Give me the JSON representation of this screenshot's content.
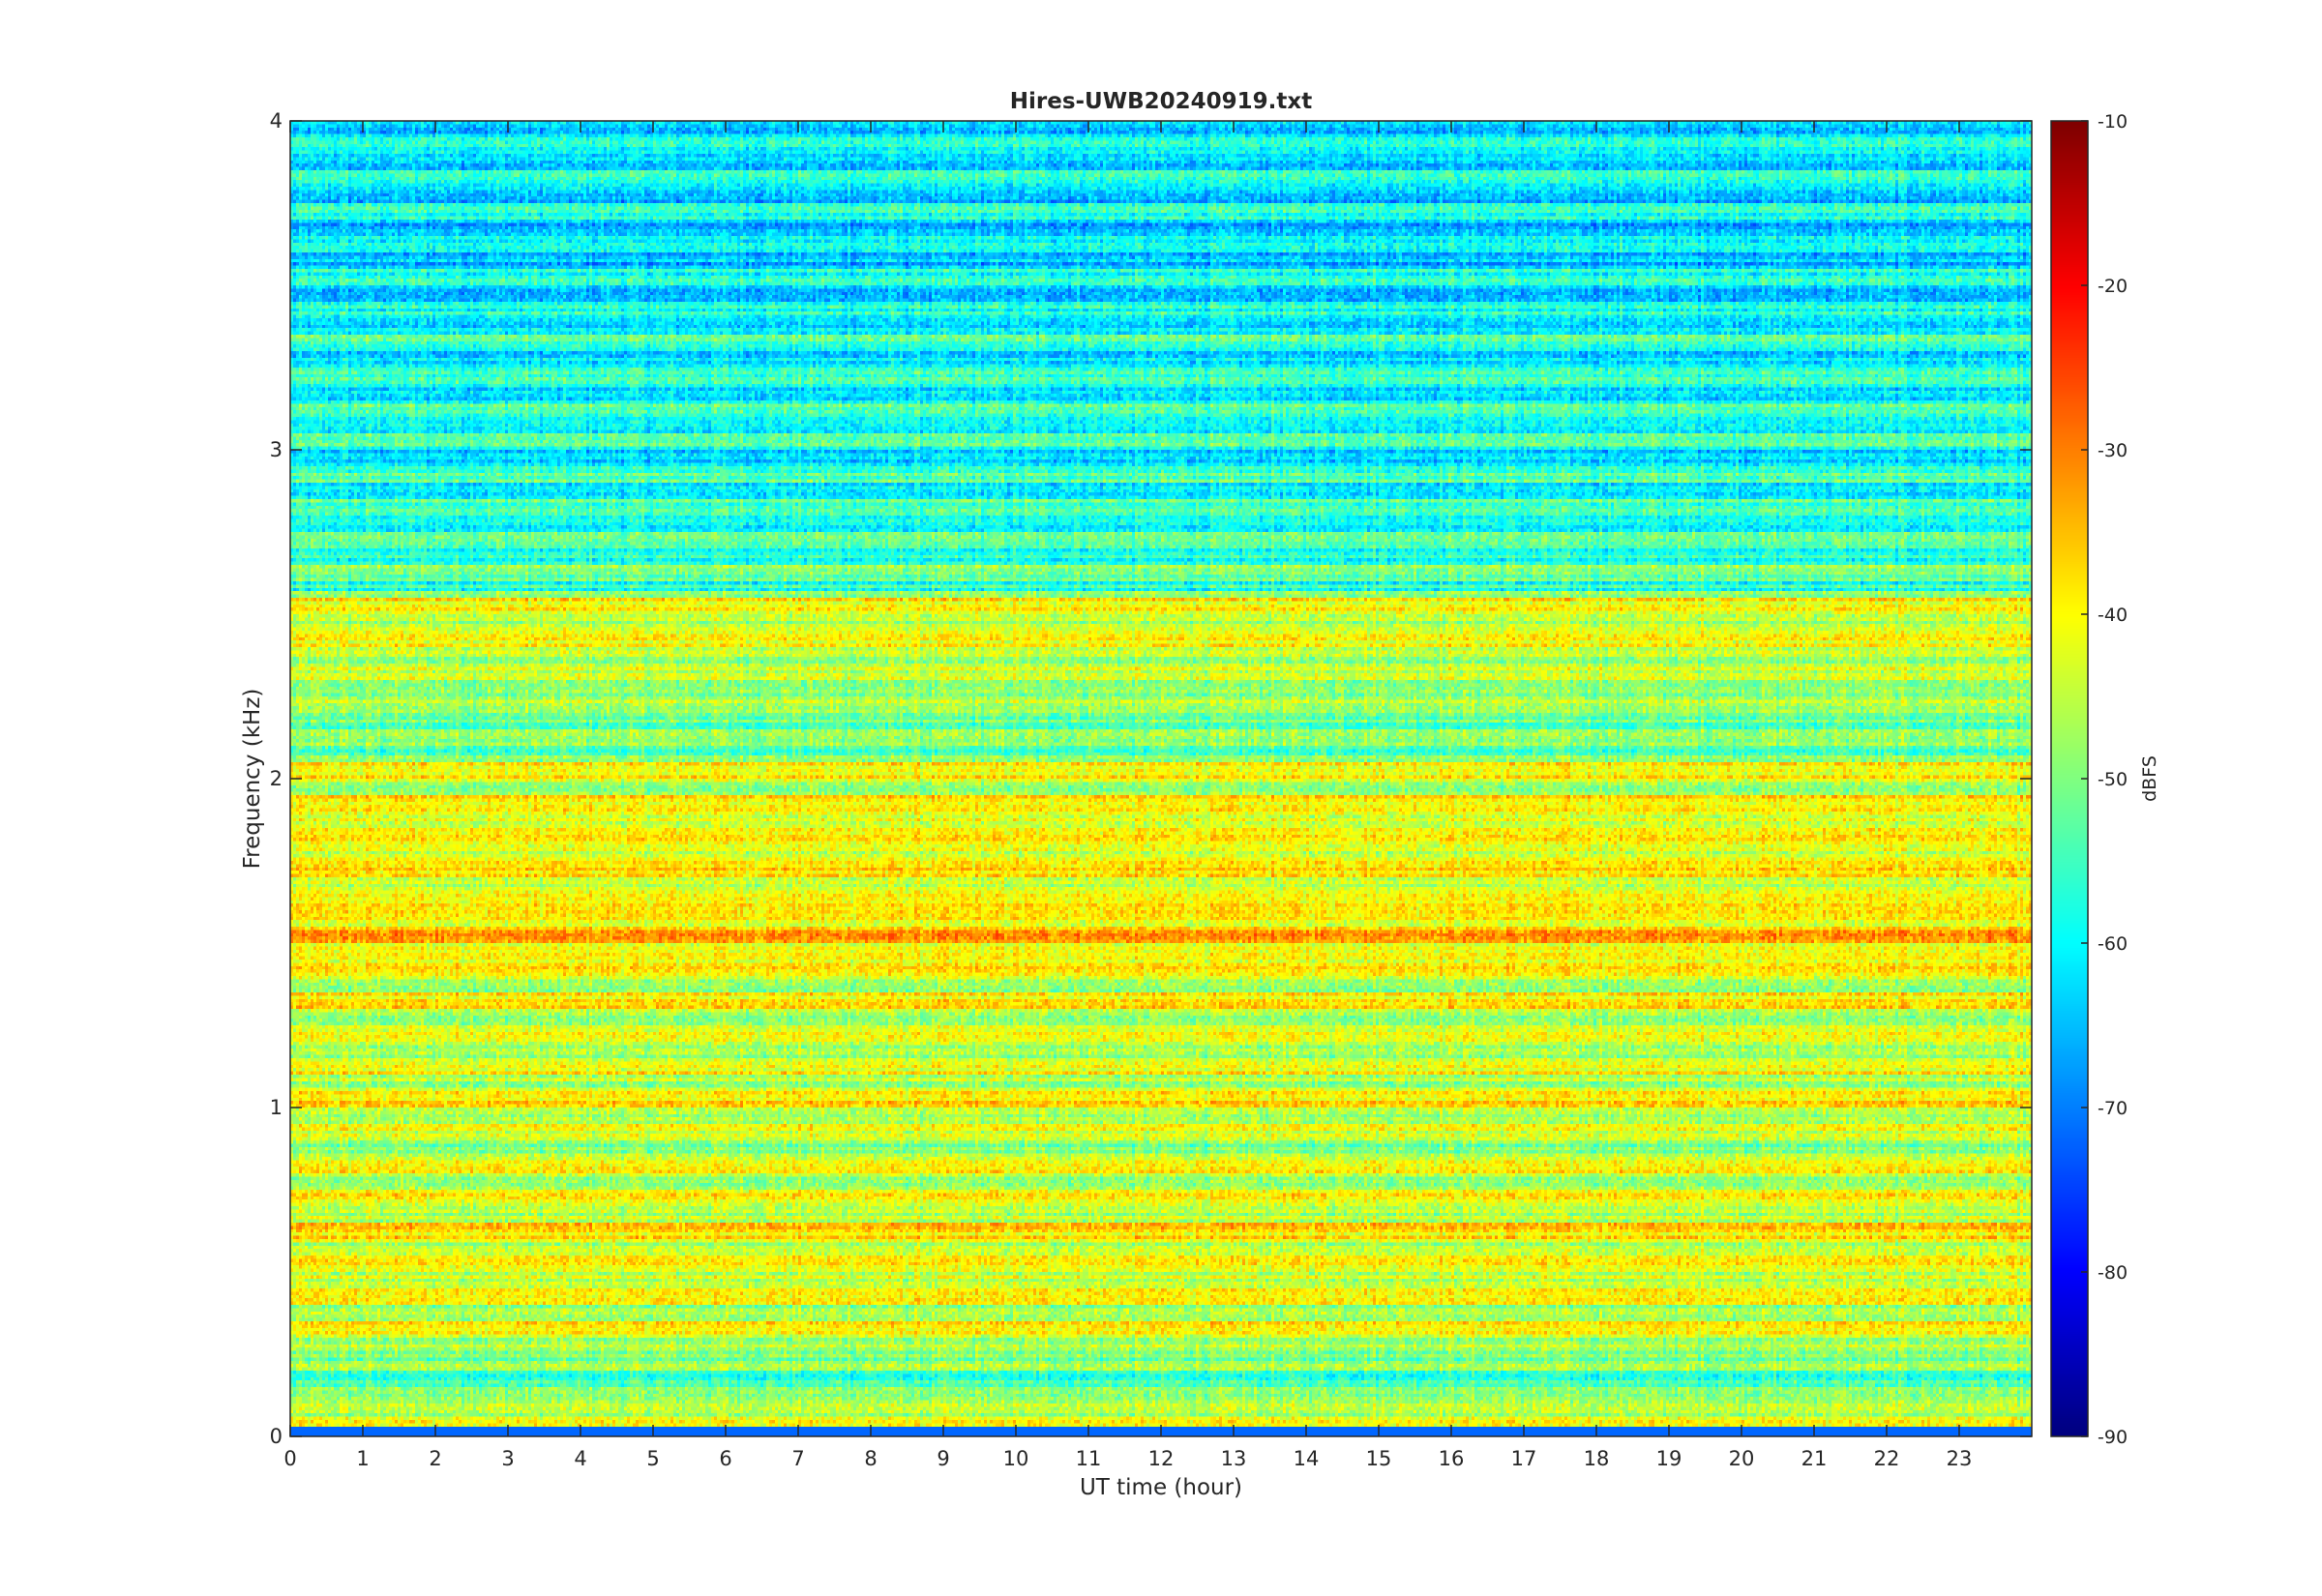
{
  "chart_data": {
    "type": "heatmap",
    "title": "Hires-UWB20240919.txt",
    "xlabel": "UT time (hour)",
    "ylabel": "Frequency (kHz)",
    "colorbar_label": "dBFS",
    "xlim": [
      0,
      24
    ],
    "ylim": [
      0,
      4
    ],
    "clim": [
      -90,
      -10
    ],
    "colormap": "jet",
    "x_ticks": [
      "0",
      "1",
      "2",
      "3",
      "4",
      "5",
      "6",
      "7",
      "8",
      "9",
      "10",
      "11",
      "12",
      "13",
      "14",
      "15",
      "16",
      "17",
      "18",
      "19",
      "20",
      "21",
      "22",
      "23"
    ],
    "y_ticks": [
      "0",
      "1",
      "2",
      "3",
      "4"
    ],
    "colorbar_ticks": [
      "-90",
      "-80",
      "-70",
      "-60",
      "-50",
      "-40",
      "-30",
      "-20",
      "-10"
    ],
    "band_levels": [
      {
        "freq_khz": 0.05,
        "dbfs": -41
      },
      {
        "freq_khz": 0.15,
        "dbfs": -56
      },
      {
        "freq_khz": 0.35,
        "dbfs": -43
      },
      {
        "freq_khz": 0.55,
        "dbfs": -41
      },
      {
        "freq_khz": 0.65,
        "dbfs": -41
      },
      {
        "freq_khz": 0.75,
        "dbfs": -44
      },
      {
        "freq_khz": 0.95,
        "dbfs": -45
      },
      {
        "freq_khz": 1.05,
        "dbfs": -42
      },
      {
        "freq_khz": 1.15,
        "dbfs": -43
      },
      {
        "freq_khz": 1.35,
        "dbfs": -42
      },
      {
        "freq_khz": 1.55,
        "dbfs": -37
      },
      {
        "freq_khz": 1.65,
        "dbfs": -40
      },
      {
        "freq_khz": 1.85,
        "dbfs": -40
      },
      {
        "freq_khz": 1.95,
        "dbfs": -42
      },
      {
        "freq_khz": 2.25,
        "dbfs": -47
      },
      {
        "freq_khz": 2.45,
        "dbfs": -42
      },
      {
        "freq_khz": 2.75,
        "dbfs": -56
      },
      {
        "freq_khz": 3.25,
        "dbfs": -58
      },
      {
        "freq_khz": 3.6,
        "dbfs": -62
      },
      {
        "freq_khz": 3.9,
        "dbfs": -62
      }
    ]
  }
}
